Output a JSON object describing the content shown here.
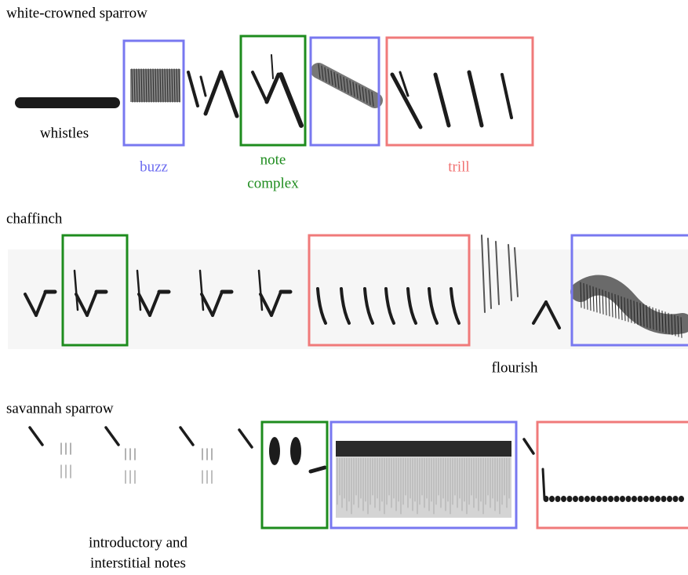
{
  "panels": [
    {
      "title": "white-crowned sparrow",
      "labels": [
        {
          "lines": [
            "whistles"
          ]
        },
        {
          "lines": [
            "buzz"
          ]
        },
        {
          "lines": [
            "note",
            "complex"
          ]
        },
        {
          "lines": [
            "trill"
          ]
        }
      ]
    },
    {
      "title": "chaffinch",
      "labels": [
        {
          "lines": [
            "flourish"
          ]
        }
      ]
    },
    {
      "title": "savannah sparrow",
      "labels": [
        {
          "lines": [
            "introductory and",
            "interstitial notes"
          ]
        }
      ]
    }
  ]
}
